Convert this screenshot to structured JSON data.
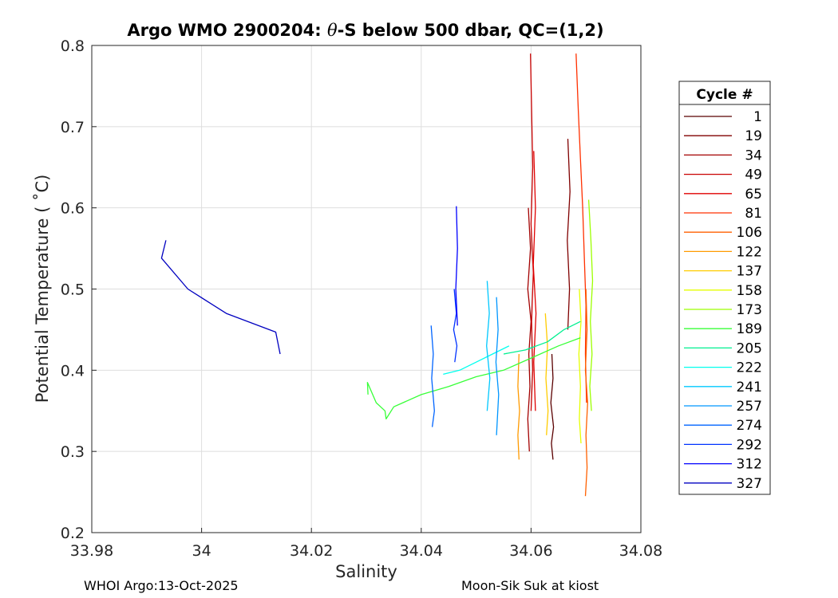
{
  "chart_data": {
    "type": "line",
    "title_parts": [
      "Argo WMO 2900204: ",
      "θ",
      "-S below 500 dbar,  QC=(1,2)"
    ],
    "xlabel": "Salinity",
    "ylabel": "Potential Temperature ( ˚C)",
    "xlim": [
      33.98,
      34.08
    ],
    "ylim": [
      0.2,
      0.8
    ],
    "xticks": [
      33.98,
      34.0,
      34.02,
      34.04,
      34.06,
      34.08
    ],
    "xtick_labels": [
      "33.98",
      "34",
      "34.02",
      "34.04",
      "34.06",
      "34.08"
    ],
    "yticks": [
      0.2,
      0.3,
      0.4,
      0.5,
      0.6,
      0.7,
      0.8
    ],
    "ytick_labels": [
      "0.2",
      "0.3",
      "0.4",
      "0.5",
      "0.6",
      "0.7",
      "0.8"
    ],
    "grid": true,
    "legend_title": "Cycle #",
    "legend_placement": "outside right",
    "series": [
      {
        "name": "1",
        "color": "#5a0000",
        "x": [
          34.0638,
          34.064,
          34.0636,
          34.0641,
          34.0637,
          34.064
        ],
        "y": [
          0.42,
          0.39,
          0.36,
          0.33,
          0.31,
          0.29
        ]
      },
      {
        "name": "19",
        "color": "#800000",
        "x": [
          34.0667,
          34.0671,
          34.0666,
          34.067,
          34.0667
        ],
        "y": [
          0.685,
          0.62,
          0.56,
          0.5,
          0.45
        ]
      },
      {
        "name": "34",
        "color": "#a30000",
        "x": [
          34.0595,
          34.0599,
          34.0594,
          34.06,
          34.0596,
          34.0598,
          34.0594,
          34.0597
        ],
        "y": [
          0.6,
          0.55,
          0.5,
          0.46,
          0.42,
          0.38,
          0.34,
          0.3
        ]
      },
      {
        "name": "49",
        "color": "#c80000",
        "x": [
          34.0599,
          34.0601,
          34.0603,
          34.06,
          34.0604,
          34.0601,
          34.0603,
          34.06
        ],
        "y": [
          0.79,
          0.72,
          0.65,
          0.58,
          0.52,
          0.46,
          0.4,
          0.35
        ]
      },
      {
        "name": "65",
        "color": "#e00000",
        "x": [
          34.0605,
          34.0608,
          34.0604,
          34.0609,
          34.0605,
          34.0608
        ],
        "y": [
          0.67,
          0.6,
          0.53,
          0.47,
          0.41,
          0.35
        ]
      },
      {
        "name": "81",
        "color": "#ff3000",
        "x": [
          34.0682,
          34.0686,
          34.069,
          34.0694,
          34.0697,
          34.07,
          34.0699,
          34.0701
        ],
        "y": [
          0.79,
          0.72,
          0.66,
          0.6,
          0.54,
          0.48,
          0.42,
          0.36
        ]
      },
      {
        "name": "106",
        "color": "#ff6000",
        "x": [
          34.07,
          34.0702,
          34.0699,
          34.0703,
          34.07,
          34.0702,
          34.0699
        ],
        "y": [
          0.5,
          0.45,
          0.4,
          0.36,
          0.32,
          0.28,
          0.245
        ]
      },
      {
        "name": "122",
        "color": "#ff9a00",
        "x": [
          34.0578,
          34.0576,
          34.0579,
          34.0576,
          34.0578
        ],
        "y": [
          0.42,
          0.38,
          0.35,
          0.32,
          0.29
        ]
      },
      {
        "name": "137",
        "color": "#ffcc00",
        "x": [
          34.0626,
          34.063,
          34.0627,
          34.0631,
          34.0628
        ],
        "y": [
          0.47,
          0.43,
          0.39,
          0.35,
          0.32
        ]
      },
      {
        "name": "158",
        "color": "#e6ff00",
        "x": [
          34.0688,
          34.0691,
          34.0687,
          34.069,
          34.0688,
          34.0691
        ],
        "y": [
          0.5,
          0.46,
          0.42,
          0.38,
          0.34,
          0.31
        ]
      },
      {
        "name": "173",
        "color": "#9cff00",
        "x": [
          34.0705,
          34.0709,
          34.0712,
          34.0708,
          34.0711,
          34.0707,
          34.071
        ],
        "y": [
          0.61,
          0.56,
          0.51,
          0.46,
          0.42,
          0.38,
          0.35
        ]
      },
      {
        "name": "189",
        "color": "#38ff38",
        "x": [
          34.0303,
          34.0302,
          34.0318,
          34.0334,
          34.0336,
          34.035,
          34.04,
          34.045,
          34.05,
          34.055,
          34.06,
          34.065,
          34.069
        ],
        "y": [
          0.37,
          0.385,
          0.36,
          0.35,
          0.34,
          0.355,
          0.37,
          0.38,
          0.392,
          0.4,
          0.415,
          0.43,
          0.44
        ]
      },
      {
        "name": "205",
        "color": "#00f090",
        "x": [
          34.055,
          34.059,
          34.063,
          34.066,
          34.069
        ],
        "y": [
          0.42,
          0.425,
          0.435,
          0.45,
          0.46
        ]
      },
      {
        "name": "222",
        "color": "#00ffee",
        "x": [
          34.044,
          34.047,
          34.05,
          34.053,
          34.056
        ],
        "y": [
          0.395,
          0.4,
          0.41,
          0.42,
          0.43
        ]
      },
      {
        "name": "241",
        "color": "#00c8ff",
        "x": [
          34.052,
          34.0524,
          34.0519,
          34.0525,
          34.052
        ],
        "y": [
          0.51,
          0.47,
          0.43,
          0.39,
          0.35
        ]
      },
      {
        "name": "257",
        "color": "#0096ff",
        "x": [
          34.0537,
          34.054,
          34.0536,
          34.0541,
          34.0537
        ],
        "y": [
          0.49,
          0.45,
          0.41,
          0.37,
          0.32
        ]
      },
      {
        "name": "274",
        "color": "#0064ff",
        "x": [
          34.0418,
          34.0422,
          34.0419,
          34.0424,
          34.042
        ],
        "y": [
          0.455,
          0.42,
          0.39,
          0.35,
          0.33
        ]
      },
      {
        "name": "292",
        "color": "#0032ff",
        "x": [
          34.046,
          34.0464,
          34.0459,
          34.0465,
          34.0461
        ],
        "y": [
          0.5,
          0.47,
          0.45,
          0.43,
          0.41
        ]
      },
      {
        "name": "312",
        "color": "#0000ff",
        "x": [
          34.0464,
          34.0466,
          34.0463,
          34.0466
        ],
        "y": [
          0.602,
          0.55,
          0.5,
          0.455
        ]
      },
      {
        "name": "327",
        "color": "#0000c0",
        "x": [
          33.9935,
          33.9927,
          33.9975,
          34.0045,
          34.0135,
          34.0143
        ],
        "y": [
          0.56,
          0.538,
          0.5,
          0.47,
          0.447,
          0.42
        ]
      }
    ]
  },
  "footer": {
    "left": "WHOI Argo:13-Oct-2025",
    "right": "Moon-Sik Suk at kiost"
  }
}
